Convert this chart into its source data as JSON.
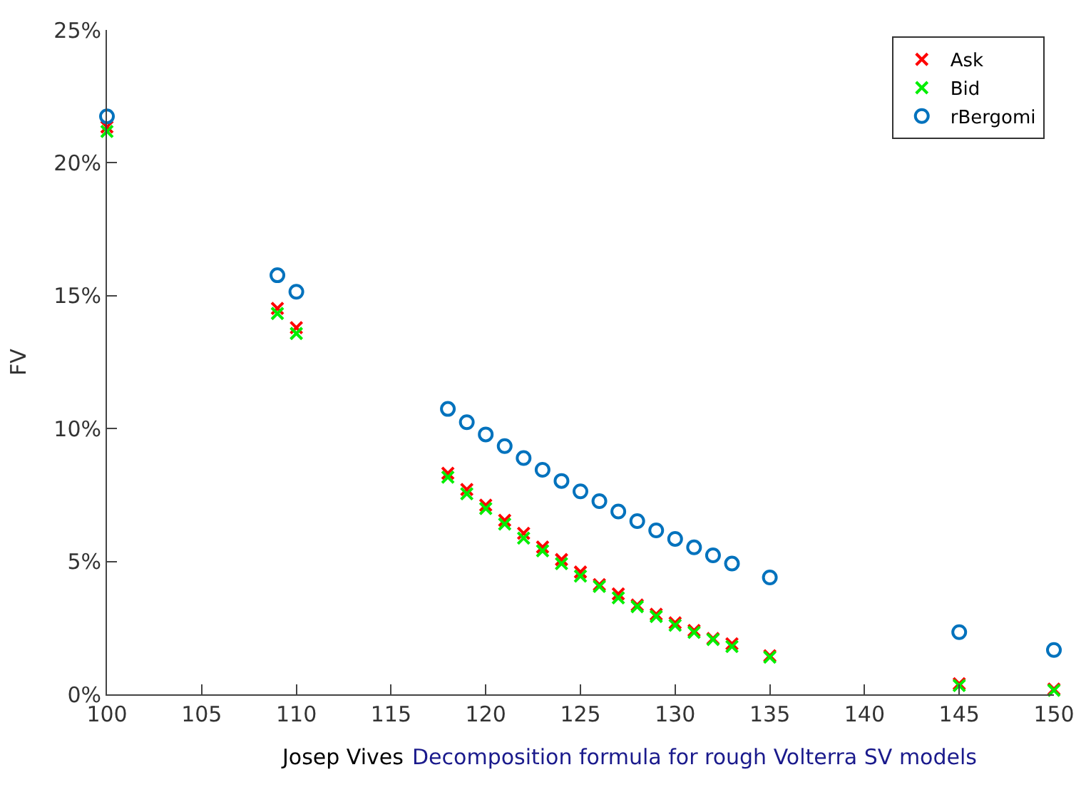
{
  "chart_data": {
    "type": "scatter",
    "ylabel": "FV",
    "x": [
      100,
      109,
      110,
      118,
      119,
      120,
      121,
      122,
      123,
      124,
      125,
      126,
      127,
      128,
      129,
      130,
      131,
      132,
      133,
      135,
      145,
      150
    ],
    "series": [
      {
        "name": "Ask",
        "color": "#ff0000",
        "marker": "cross",
        "values": [
          21.35,
          14.52,
          13.8,
          8.32,
          7.71,
          7.12,
          6.55,
          6.06,
          5.54,
          5.07,
          4.6,
          4.13,
          3.78,
          3.36,
          3.01,
          2.69,
          2.4,
          2.1,
          1.9,
          1.45,
          0.4,
          0.2
        ]
      },
      {
        "name": "Bid",
        "color": "#00ee00",
        "marker": "cross",
        "values": [
          21.18,
          14.33,
          13.58,
          8.17,
          7.55,
          6.99,
          6.41,
          5.88,
          5.4,
          4.92,
          4.45,
          4.06,
          3.63,
          3.3,
          2.93,
          2.6,
          2.33,
          2.06,
          1.8,
          1.4,
          0.33,
          0.15
        ]
      },
      {
        "name": "rBergomi",
        "color": "#0072bd",
        "marker": "circle",
        "values": [
          21.75,
          15.77,
          15.15,
          10.74,
          10.24,
          9.78,
          9.34,
          8.89,
          8.45,
          8.03,
          7.64,
          7.27,
          6.88,
          6.52,
          6.17,
          5.85,
          5.53,
          5.23,
          4.92,
          4.4,
          2.34,
          1.67
        ]
      }
    ],
    "xlim": [
      100,
      150
    ],
    "xticks": [
      100,
      105,
      110,
      115,
      120,
      125,
      130,
      135,
      140,
      145,
      150
    ],
    "ylim": [
      0,
      25
    ],
    "yticks": [
      {
        "value": 0,
        "label": "0%"
      },
      {
        "value": 5,
        "label": "5%"
      },
      {
        "value": 10,
        "label": "10%"
      },
      {
        "value": 15,
        "label": "15%"
      },
      {
        "value": 20,
        "label": "20%"
      },
      {
        "value": 25,
        "label": "25%"
      }
    ],
    "legend": "top right",
    "annotations": [
      "Josep Vives",
      "Decomposition formula for rough Volterra SV models"
    ]
  }
}
